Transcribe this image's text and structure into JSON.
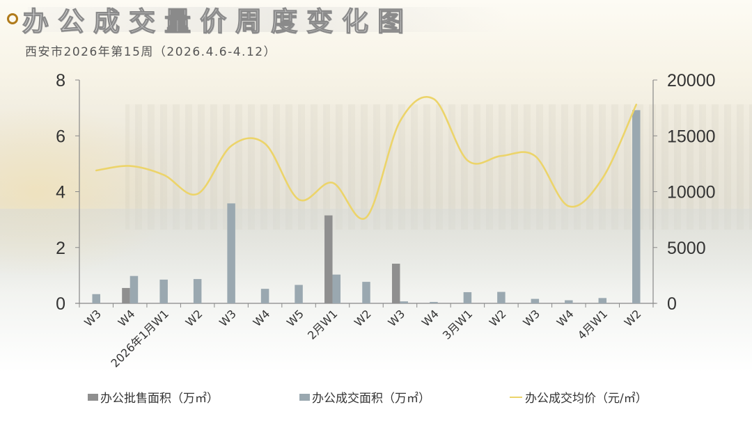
{
  "header": {
    "title": "办公成交量价周度变化图",
    "subtitle": "西安市2026年第15周（2026.4.6-4.12）"
  },
  "colors": {
    "wholesale_bar": "#8f8f8f",
    "deal_bar": "#9aa8b0",
    "price_line": "#ecd46a",
    "bullet": "#b07a1a",
    "axis": "#888888"
  },
  "legend": {
    "wholesale": "办公批售面积（万㎡）",
    "deal": "办公成交面积（万㎡）",
    "price": "办公成交均价（元/㎡）"
  },
  "chart_data": {
    "type": "bar",
    "title": "办公成交量价周度变化图",
    "subtitle": "西安市2026年第15周（2026.4.6-4.12）",
    "categories": [
      "W3",
      "W4",
      "2026年1月W1",
      "W2",
      "W3",
      "W4",
      "W5",
      "2月W1",
      "W2",
      "W3",
      "W4",
      "3月W1",
      "W2",
      "W3",
      "W4",
      "4月W1",
      "W2"
    ],
    "series": [
      {
        "name": "办公批售面积（万㎡）",
        "type": "bar",
        "axis": "left",
        "values": [
          0,
          0.55,
          0,
          0,
          0,
          0,
          0,
          3.15,
          0,
          1.42,
          0,
          0,
          0,
          0,
          0,
          0,
          0
        ]
      },
      {
        "name": "办公成交面积（万㎡）",
        "type": "bar",
        "axis": "left",
        "values": [
          0.33,
          0.98,
          0.85,
          0.87,
          3.58,
          0.52,
          0.66,
          1.03,
          0.77,
          0.07,
          0.05,
          0.4,
          0.41,
          0.16,
          0.11,
          0.19,
          6.92
        ]
      },
      {
        "name": "办公成交均价（元/㎡）",
        "type": "line",
        "axis": "right",
        "smooth": true,
        "values": [
          11900,
          12300,
          11500,
          9800,
          14100,
          14300,
          9300,
          10800,
          7700,
          16300,
          18300,
          12800,
          13200,
          13200,
          8700,
          11200,
          17800
        ]
      }
    ],
    "y_left": {
      "ticks": [
        "0",
        "2",
        "4",
        "6",
        "8"
      ],
      "range": [
        0,
        8
      ]
    },
    "y_right": {
      "ticks": [
        "0",
        "5000",
        "10000",
        "15000",
        "20000"
      ],
      "range": [
        0,
        20000
      ]
    },
    "grid": false,
    "legend_position": "bottom"
  }
}
